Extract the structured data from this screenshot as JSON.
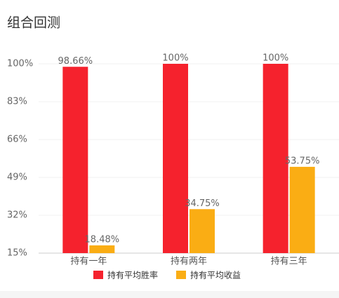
{
  "chart_data": {
    "type": "bar",
    "title": "组合回测",
    "categories": [
      "持有一年",
      "持有两年",
      "持有三年"
    ],
    "series": [
      {
        "name": "持有平均胜率",
        "color": "#f5222d",
        "values": [
          98.66,
          100,
          100
        ],
        "value_labels": [
          "98.66%",
          "100%",
          "100%"
        ]
      },
      {
        "name": "持有平均收益",
        "color": "#faad14",
        "values": [
          18.48,
          34.75,
          53.75
        ],
        "value_labels": [
          "18.48%",
          "34.75%",
          "53.75%"
        ]
      }
    ],
    "ylim": [
      15,
      100
    ],
    "yticks": [
      {
        "value": 15,
        "label": "15%"
      },
      {
        "value": 32,
        "label": "32%"
      },
      {
        "value": 49,
        "label": "49%"
      },
      {
        "value": 66,
        "label": "66%"
      },
      {
        "value": 83,
        "label": "83%"
      },
      {
        "value": 100,
        "label": "100%"
      }
    ],
    "grid": true,
    "legend": "bottom"
  }
}
